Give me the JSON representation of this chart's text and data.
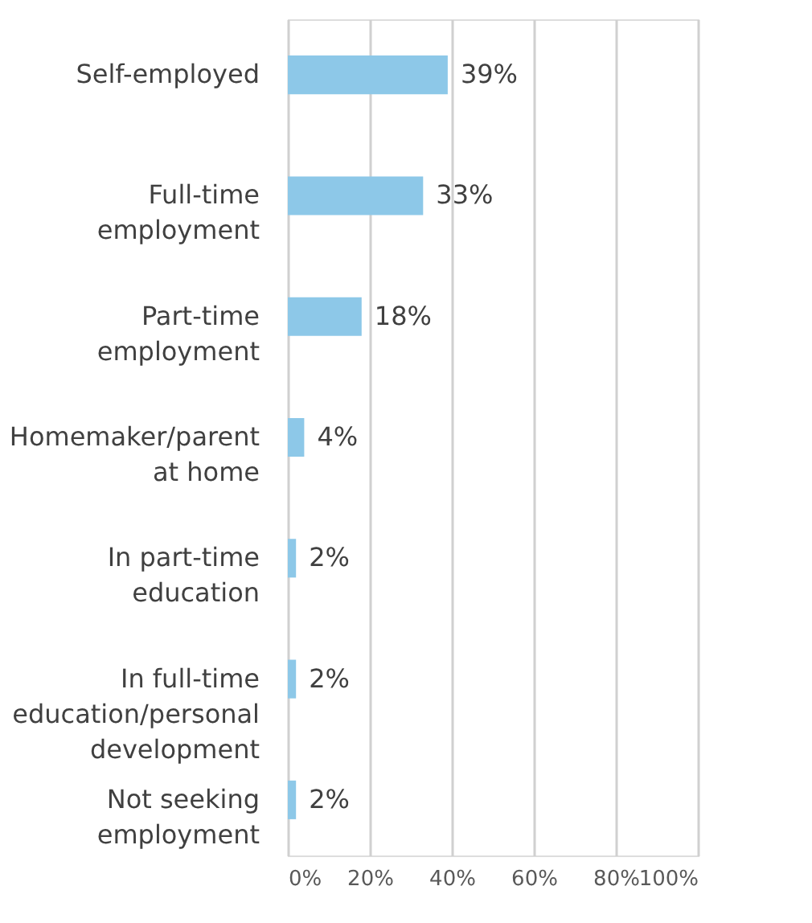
{
  "chart_data": {
    "type": "bar",
    "orientation": "horizontal",
    "categories": [
      "Self-employed",
      "Full-time\nemployment",
      "Part-time\nemployment",
      "Homemaker/parent\nat home",
      "In part-time\neducation",
      "In full-time\neducation/personal\ndevelopment",
      "Not seeking\nemployment"
    ],
    "values": [
      39,
      33,
      18,
      4,
      2,
      2,
      2
    ],
    "value_labels": [
      "39%",
      "33%",
      "18%",
      "4%",
      "2%",
      "2%",
      "2%"
    ],
    "color": "#8dc8e8",
    "xlim": [
      0,
      100
    ],
    "xticks": [
      {
        "value": 0,
        "label": "0%"
      },
      {
        "value": 20,
        "label": "20%"
      },
      {
        "value": 40,
        "label": "40%"
      },
      {
        "value": 60,
        "label": "60%"
      },
      {
        "value": 80,
        "label": "80%"
      },
      {
        "value": 100,
        "label": "100%"
      }
    ],
    "grid": "x"
  }
}
